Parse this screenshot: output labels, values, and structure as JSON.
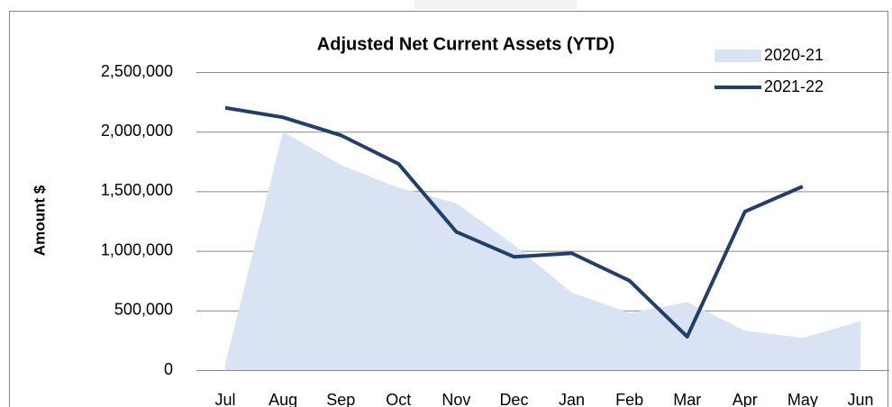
{
  "chart_data": {
    "type": "area-line",
    "title": "Adjusted Net Current Assets (YTD)",
    "y_label": "Amount $",
    "categories": [
      "Jul",
      "Aug",
      "Sep",
      "Oct",
      "Nov",
      "Dec",
      "Jan",
      "Feb",
      "Mar",
      "Apr",
      "May",
      "Jun"
    ],
    "series": [
      {
        "name": "2020-21",
        "type": "area",
        "color": "#dae3f3",
        "values": [
          50000,
          2000000,
          1720000,
          1530000,
          1400000,
          1050000,
          650000,
          480000,
          570000,
          330000,
          270000,
          410000
        ]
      },
      {
        "name": "2021-22",
        "type": "line",
        "color": "#203f6e",
        "values": [
          2200000,
          2120000,
          1970000,
          1730000,
          1160000,
          950000,
          980000,
          750000,
          280000,
          1330000,
          1540000,
          null
        ]
      }
    ],
    "ylim": [
      0,
      2500000
    ],
    "yticks": [
      0,
      {
        "value": 500000,
        "label": "500,000"
      },
      {
        "value": 1000000,
        "label": "1,000,000"
      },
      {
        "value": 1500000,
        "label": "1,500,000"
      },
      {
        "value": 2000000,
        "label": "2,000,000"
      },
      {
        "value": 2500000,
        "label": "2,500,000"
      }
    ],
    "grid": true,
    "legend": "top-right"
  }
}
